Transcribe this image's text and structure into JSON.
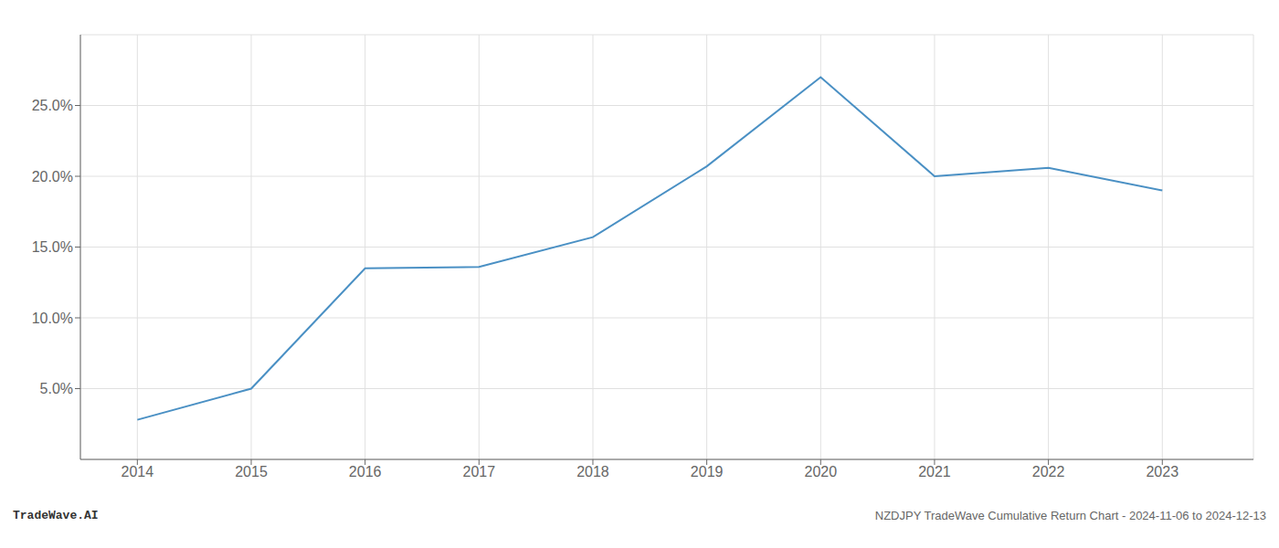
{
  "chart_data": {
    "type": "line",
    "x": [
      2014,
      2015,
      2016,
      2017,
      2018,
      2019,
      2020,
      2021,
      2022,
      2023
    ],
    "values": [
      2.8,
      5.0,
      13.5,
      13.6,
      15.7,
      20.7,
      27.0,
      20.0,
      20.6,
      19.0
    ],
    "color": "#4a90c4",
    "xlim": [
      2013.5,
      2023.8
    ],
    "xticks": [
      2014,
      2015,
      2016,
      2017,
      2018,
      2019,
      2020,
      2021,
      2022,
      2023
    ],
    "ylim": [
      0,
      30
    ],
    "yticks": [
      {
        "value": 5.0,
        "label": "5.0%"
      },
      {
        "value": 10.0,
        "label": "10.0%"
      },
      {
        "value": 15.0,
        "label": "15.0%"
      },
      {
        "value": 20.0,
        "label": "20.0%"
      },
      {
        "value": 25.0,
        "label": "25.0%"
      }
    ],
    "grid": true,
    "annotations": [
      "TradeWave.AI",
      "NZDJPY TradeWave Cumulative Return Chart - 2024-11-06 to 2024-12-13"
    ]
  }
}
